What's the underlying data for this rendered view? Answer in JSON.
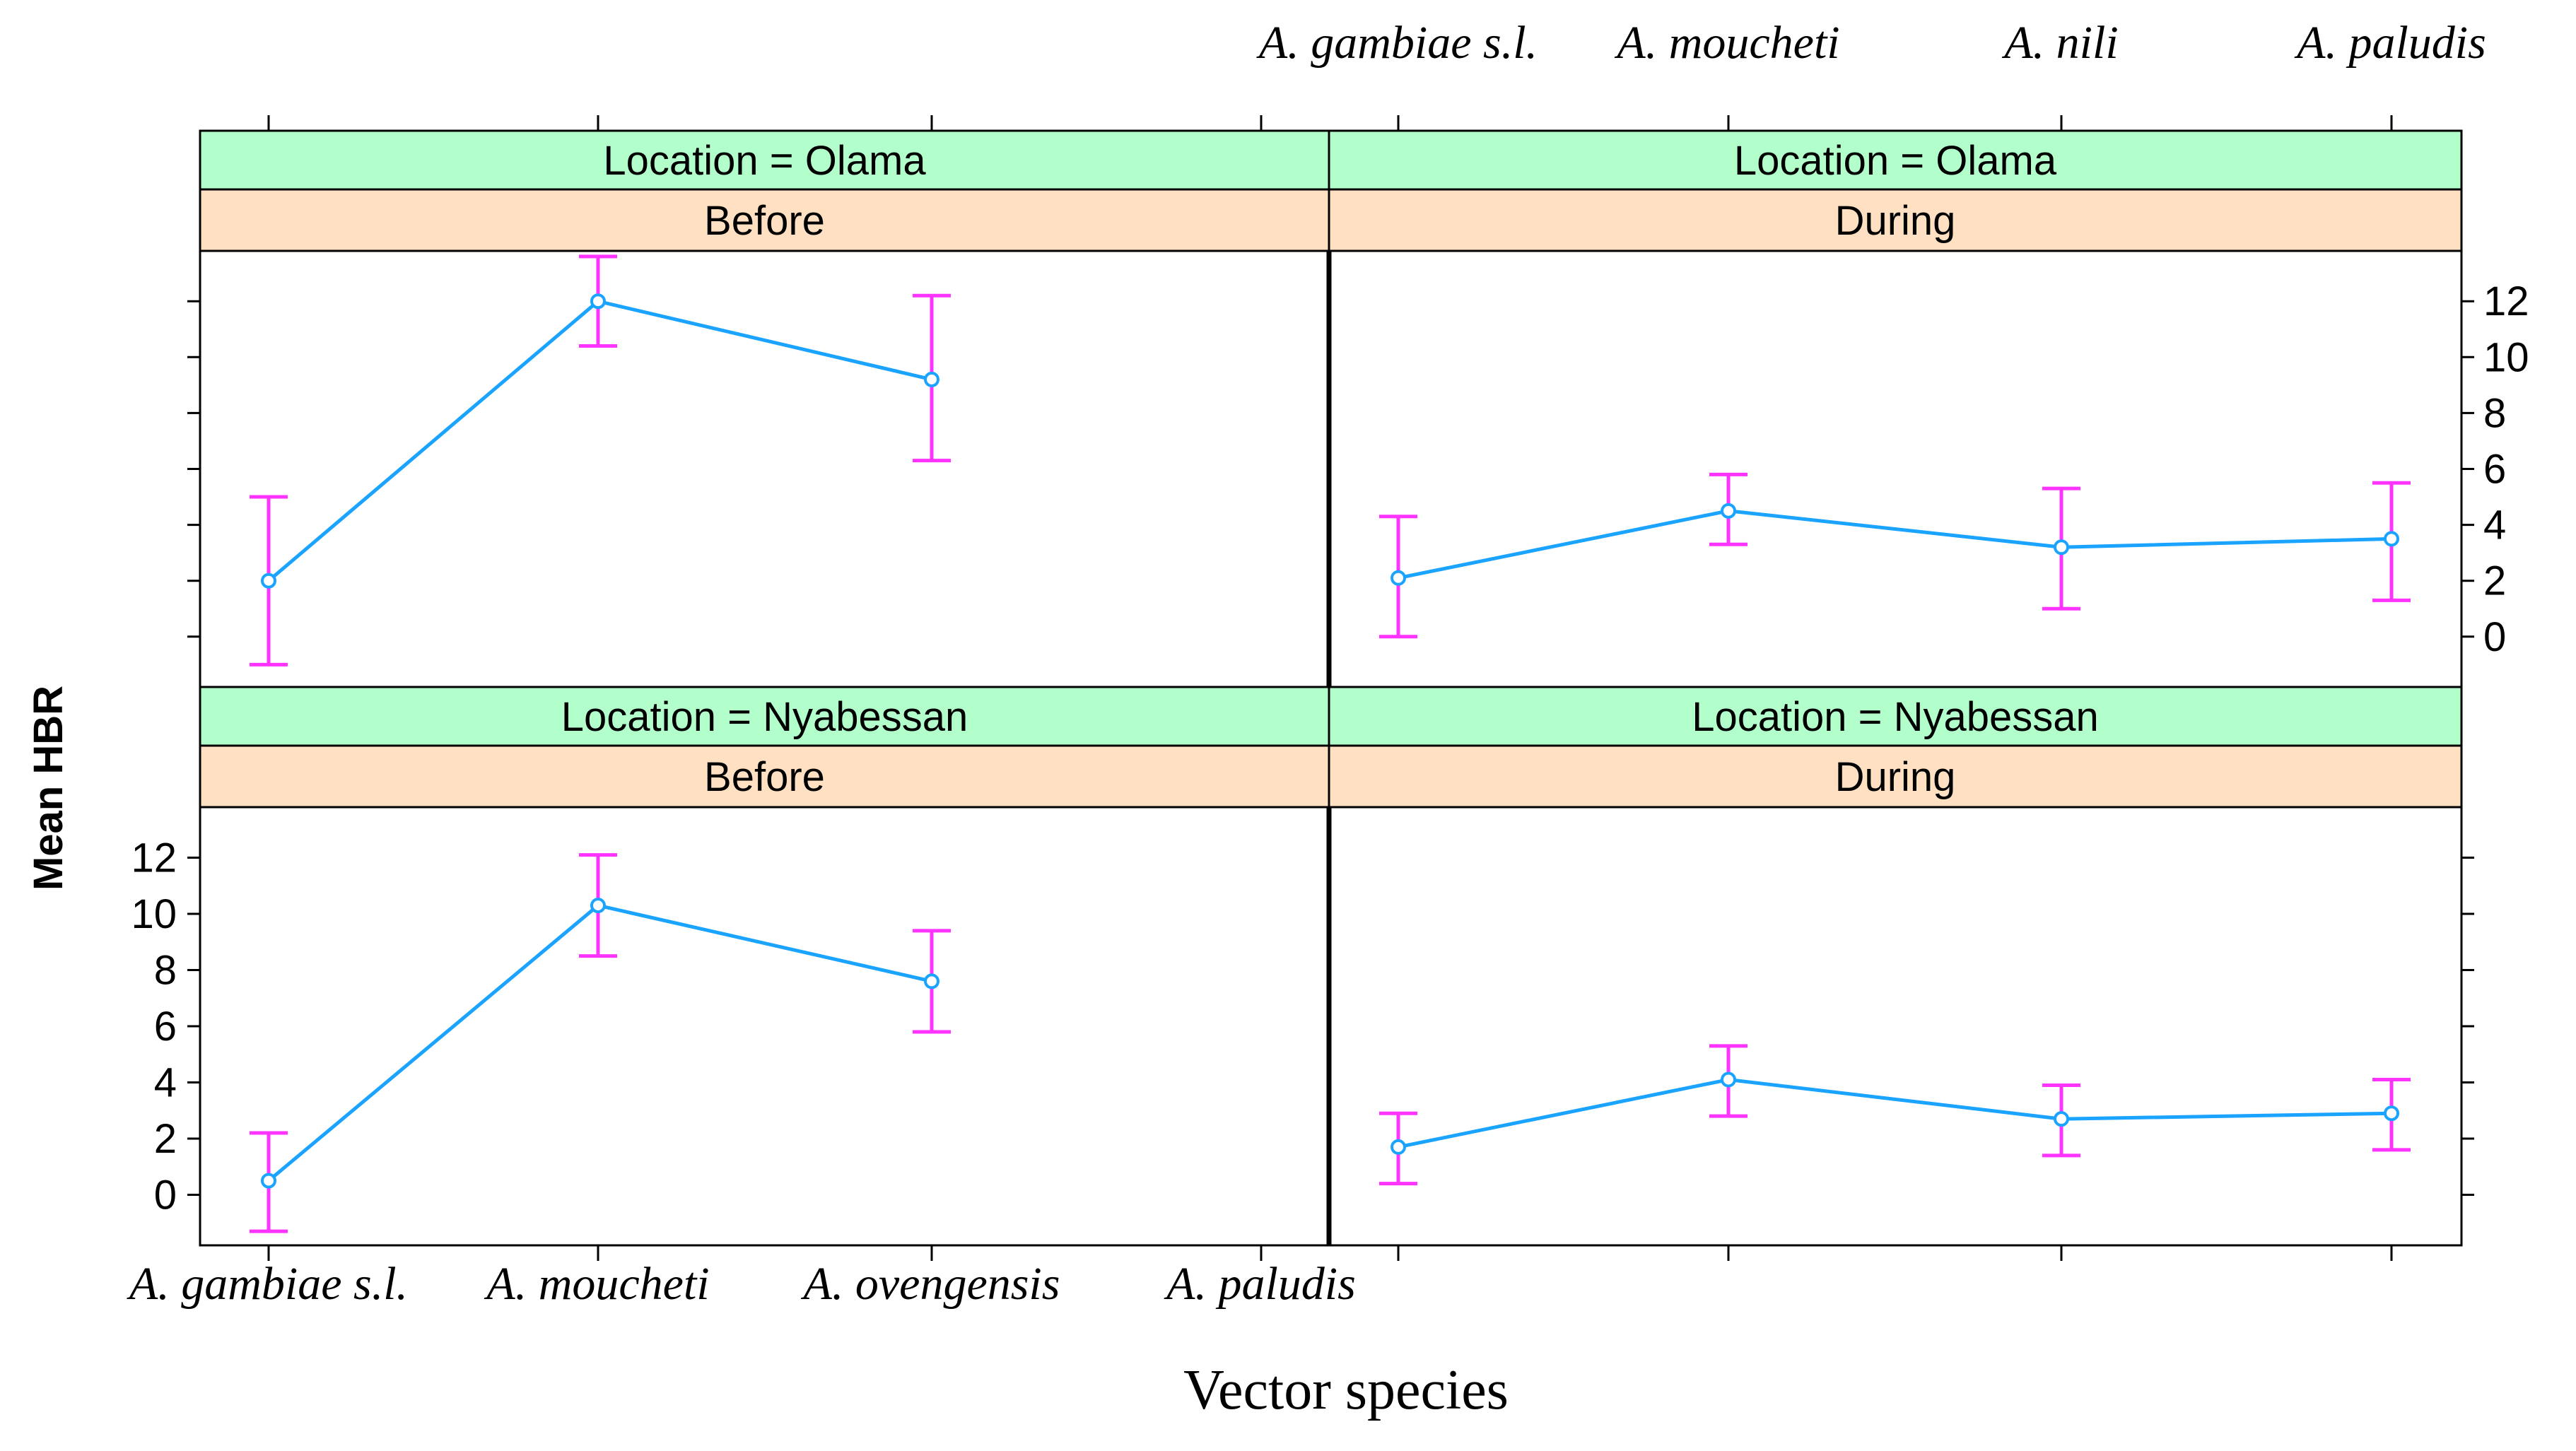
{
  "chart_data": {
    "type": "line",
    "xlabel": "Vector species",
    "ylabel": "Mean HBR",
    "ylim": [
      -1.8,
      13.8
    ],
    "yticks": [
      0,
      2,
      4,
      6,
      8,
      10,
      12
    ],
    "colors": {
      "line": "#1aa3ff",
      "errorbar": "#ff33ff",
      "strip_location": "#b3ffcc",
      "strip_period": "#ffe0c2"
    },
    "panels": [
      {
        "location_label": "Location = Olama",
        "period_label": "Before",
        "categories": [
          "A. gambiae s.l.",
          "A. moucheti",
          "A. ovengensis",
          "A. paludis"
        ],
        "mean": [
          2.0,
          12.0,
          9.2,
          null
        ],
        "lower": [
          -1.0,
          10.4,
          6.3,
          null
        ],
        "upper": [
          5.0,
          13.6,
          12.2,
          null
        ]
      },
      {
        "location_label": "Location = Olama",
        "period_label": "During",
        "categories": [
          "A. gambiae s.l.",
          "A. moucheti",
          "A. nili",
          "A. paludis"
        ],
        "mean": [
          2.1,
          4.5,
          3.2,
          3.5
        ],
        "lower": [
          0.0,
          3.3,
          1.0,
          1.3
        ],
        "upper": [
          4.3,
          5.8,
          5.3,
          5.5
        ]
      },
      {
        "location_label": "Location = Nyabessan",
        "period_label": "Before",
        "categories": [
          "A. gambiae s.l.",
          "A. moucheti",
          "A. ovengensis",
          "A. paludis"
        ],
        "mean": [
          0.5,
          10.3,
          7.6,
          null
        ],
        "lower": [
          -1.3,
          8.5,
          5.8,
          null
        ],
        "upper": [
          2.2,
          12.1,
          9.4,
          null
        ]
      },
      {
        "location_label": "Location = Nyabessan",
        "period_label": "During",
        "categories": [
          "A. gambiae s.l.",
          "A. moucheti",
          "A. nili",
          "A. paludis"
        ],
        "mean": [
          1.7,
          4.1,
          2.7,
          2.9
        ],
        "lower": [
          0.4,
          2.8,
          1.4,
          1.6
        ],
        "upper": [
          2.9,
          5.3,
          3.9,
          4.1
        ]
      }
    ]
  }
}
